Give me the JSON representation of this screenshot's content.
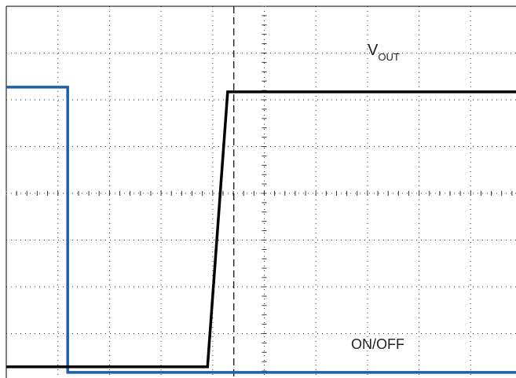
{
  "chart_data": {
    "type": "line",
    "xlim": [
      0,
      10
    ],
    "ylim": [
      0,
      8
    ],
    "xticks": [
      0,
      1,
      2,
      3,
      4,
      5,
      6,
      7,
      8,
      9,
      10
    ],
    "yticks": [
      0,
      1,
      2,
      3,
      4,
      5,
      6,
      7,
      8
    ],
    "grid": true,
    "cursor_x": 4.41,
    "series": [
      {
        "name": "ON/OFF",
        "color": "#1f5fa8",
        "x": [
          0,
          1.19,
          1.19,
          10
        ],
        "values": [
          6.27,
          6.27,
          0.17,
          0.17
        ]
      },
      {
        "name": "V",
        "name_sub": "OUT",
        "color": "#000000",
        "x": [
          0,
          3.9,
          4.29,
          10
        ],
        "values": [
          0.29,
          0.29,
          6.17,
          6.17
        ]
      }
    ]
  }
}
